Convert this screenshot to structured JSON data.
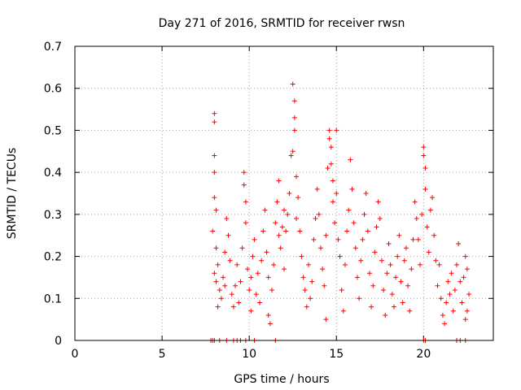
{
  "chart_data": {
    "type": "scatter",
    "title": "Day 271 of 2016, SRMTID for receiver rwsn",
    "xlabel": "GPS time / hours",
    "ylabel": "SRMTID / TECUs",
    "xlim": [
      0,
      24
    ],
    "ylim": [
      0,
      0.7
    ],
    "xticks": [
      0,
      5,
      10,
      15,
      20
    ],
    "xtick_labels": [
      "0",
      "5",
      "10",
      "15",
      "20"
    ],
    "yticks": [
      0,
      0.1,
      0.2,
      0.3,
      0.4,
      0.5,
      0.6,
      0.7
    ],
    "ytick_labels": [
      "0",
      "0.1",
      "0.2",
      "0.3",
      "0.4",
      "0.5",
      "0.6",
      "0.7"
    ],
    "grid": true,
    "marker": "plus",
    "color": "#ff0000",
    "series": [
      {
        "points": [
          [
            7.8,
            0.0
          ],
          [
            7.9,
            0.0
          ],
          [
            8.0,
            0.0
          ],
          [
            8.3,
            0.0
          ],
          [
            8.7,
            0.0
          ],
          [
            9.1,
            0.0
          ],
          [
            9.3,
            0.0
          ],
          [
            9.5,
            0.0
          ],
          [
            9.8,
            0.0
          ],
          [
            10.3,
            0.0
          ],
          [
            11.5,
            0.0
          ],
          [
            20.0,
            0.0
          ],
          [
            20.1,
            0.0
          ],
          [
            21.9,
            0.0
          ],
          [
            22.1,
            0.0
          ],
          [
            22.4,
            0.0
          ],
          [
            8.0,
            0.54
          ],
          [
            8.0,
            0.52
          ],
          [
            8.0,
            0.44
          ],
          [
            8.0,
            0.4
          ],
          [
            8.0,
            0.34
          ],
          [
            8.1,
            0.31
          ],
          [
            7.9,
            0.26
          ],
          [
            8.1,
            0.22
          ],
          [
            8.2,
            0.18
          ],
          [
            8.0,
            0.16
          ],
          [
            8.1,
            0.14
          ],
          [
            8.3,
            0.12
          ],
          [
            8.4,
            0.1
          ],
          [
            8.2,
            0.08
          ],
          [
            8.5,
            0.15
          ],
          [
            8.6,
            0.21
          ],
          [
            8.7,
            0.29
          ],
          [
            8.8,
            0.25
          ],
          [
            8.9,
            0.19
          ],
          [
            8.6,
            0.13
          ],
          [
            9.0,
            0.11
          ],
          [
            9.1,
            0.08
          ],
          [
            9.2,
            0.13
          ],
          [
            9.3,
            0.18
          ],
          [
            9.4,
            0.09
          ],
          [
            9.5,
            0.14
          ],
          [
            9.6,
            0.22
          ],
          [
            9.7,
            0.4
          ],
          [
            9.7,
            0.37
          ],
          [
            9.8,
            0.33
          ],
          [
            9.8,
            0.28
          ],
          [
            9.9,
            0.17
          ],
          [
            10.0,
            0.12
          ],
          [
            10.1,
            0.07
          ],
          [
            10.1,
            0.15
          ],
          [
            10.2,
            0.2
          ],
          [
            10.3,
            0.24
          ],
          [
            10.4,
            0.11
          ],
          [
            10.5,
            0.16
          ],
          [
            10.6,
            0.09
          ],
          [
            10.7,
            0.19
          ],
          [
            10.8,
            0.26
          ],
          [
            10.9,
            0.31
          ],
          [
            11.0,
            0.21
          ],
          [
            11.1,
            0.15
          ],
          [
            11.1,
            0.06
          ],
          [
            11.2,
            0.04
          ],
          [
            11.3,
            0.12
          ],
          [
            11.4,
            0.18
          ],
          [
            11.5,
            0.28
          ],
          [
            11.6,
            0.33
          ],
          [
            11.7,
            0.38
          ],
          [
            11.7,
            0.25
          ],
          [
            11.8,
            0.22
          ],
          [
            11.9,
            0.27
          ],
          [
            12.0,
            0.31
          ],
          [
            12.0,
            0.17
          ],
          [
            12.1,
            0.26
          ],
          [
            12.2,
            0.3
          ],
          [
            12.3,
            0.35
          ],
          [
            12.4,
            0.44
          ],
          [
            12.5,
            0.45
          ],
          [
            12.5,
            0.61
          ],
          [
            12.6,
            0.57
          ],
          [
            12.6,
            0.53
          ],
          [
            12.6,
            0.5
          ],
          [
            12.7,
            0.39
          ],
          [
            12.7,
            0.29
          ],
          [
            12.8,
            0.34
          ],
          [
            12.9,
            0.26
          ],
          [
            13.0,
            0.2
          ],
          [
            13.1,
            0.15
          ],
          [
            13.2,
            0.12
          ],
          [
            13.3,
            0.08
          ],
          [
            13.4,
            0.18
          ],
          [
            13.5,
            0.1
          ],
          [
            13.6,
            0.14
          ],
          [
            13.7,
            0.24
          ],
          [
            13.8,
            0.29
          ],
          [
            13.9,
            0.36
          ],
          [
            14.0,
            0.3
          ],
          [
            14.1,
            0.22
          ],
          [
            14.2,
            0.17
          ],
          [
            14.3,
            0.13
          ],
          [
            14.4,
            0.05
          ],
          [
            14.4,
            0.25
          ],
          [
            14.5,
            0.41
          ],
          [
            14.6,
            0.5
          ],
          [
            14.6,
            0.48
          ],
          [
            14.7,
            0.46
          ],
          [
            14.7,
            0.42
          ],
          [
            14.8,
            0.38
          ],
          [
            14.8,
            0.33
          ],
          [
            14.9,
            0.28
          ],
          [
            15.0,
            0.5
          ],
          [
            15.0,
            0.35
          ],
          [
            15.1,
            0.24
          ],
          [
            15.2,
            0.2
          ],
          [
            15.3,
            0.12
          ],
          [
            15.4,
            0.07
          ],
          [
            15.5,
            0.18
          ],
          [
            15.6,
            0.26
          ],
          [
            15.7,
            0.31
          ],
          [
            15.8,
            0.43
          ],
          [
            15.9,
            0.36
          ],
          [
            16.0,
            0.28
          ],
          [
            16.1,
            0.22
          ],
          [
            16.2,
            0.15
          ],
          [
            16.3,
            0.1
          ],
          [
            16.4,
            0.19
          ],
          [
            16.5,
            0.24
          ],
          [
            16.6,
            0.3
          ],
          [
            16.7,
            0.35
          ],
          [
            16.8,
            0.26
          ],
          [
            16.9,
            0.16
          ],
          [
            17.0,
            0.08
          ],
          [
            17.1,
            0.13
          ],
          [
            17.2,
            0.21
          ],
          [
            17.3,
            0.27
          ],
          [
            17.4,
            0.33
          ],
          [
            17.5,
            0.29
          ],
          [
            17.6,
            0.19
          ],
          [
            17.7,
            0.12
          ],
          [
            17.8,
            0.06
          ],
          [
            17.9,
            0.16
          ],
          [
            18.0,
            0.23
          ],
          [
            18.1,
            0.18
          ],
          [
            18.2,
            0.11
          ],
          [
            18.3,
            0.08
          ],
          [
            18.4,
            0.15
          ],
          [
            18.5,
            0.2
          ],
          [
            18.6,
            0.25
          ],
          [
            18.7,
            0.14
          ],
          [
            18.8,
            0.09
          ],
          [
            18.9,
            0.19
          ],
          [
            19.0,
            0.22
          ],
          [
            19.1,
            0.13
          ],
          [
            19.2,
            0.07
          ],
          [
            19.3,
            0.17
          ],
          [
            19.4,
            0.24
          ],
          [
            19.5,
            0.33
          ],
          [
            19.6,
            0.29
          ],
          [
            19.7,
            0.24
          ],
          [
            19.8,
            0.18
          ],
          [
            19.9,
            0.3
          ],
          [
            20.0,
            0.46
          ],
          [
            20.0,
            0.44
          ],
          [
            20.1,
            0.41
          ],
          [
            20.1,
            0.36
          ],
          [
            20.2,
            0.27
          ],
          [
            20.3,
            0.21
          ],
          [
            20.4,
            0.31
          ],
          [
            20.5,
            0.34
          ],
          [
            20.6,
            0.25
          ],
          [
            20.7,
            0.19
          ],
          [
            20.8,
            0.13
          ],
          [
            20.9,
            0.18
          ],
          [
            21.0,
            0.1
          ],
          [
            21.1,
            0.06
          ],
          [
            21.2,
            0.04
          ],
          [
            21.3,
            0.09
          ],
          [
            21.4,
            0.14
          ],
          [
            21.5,
            0.11
          ],
          [
            21.6,
            0.16
          ],
          [
            21.7,
            0.07
          ],
          [
            21.8,
            0.12
          ],
          [
            21.9,
            0.18
          ],
          [
            22.0,
            0.23
          ],
          [
            22.1,
            0.14
          ],
          [
            22.2,
            0.09
          ],
          [
            22.3,
            0.15
          ],
          [
            22.4,
            0.2
          ],
          [
            22.5,
            0.17
          ],
          [
            22.5,
            0.07
          ],
          [
            22.6,
            0.11
          ],
          [
            22.4,
            0.05
          ]
        ]
      }
    ]
  }
}
